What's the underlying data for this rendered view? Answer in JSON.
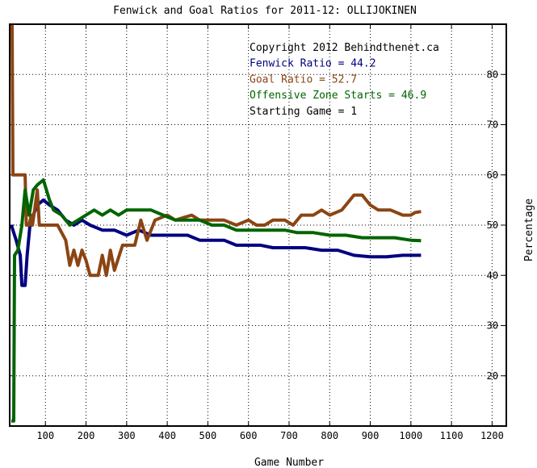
{
  "chart_data": {
    "type": "line",
    "title": "Fenwick and Goal Ratios for 2011-12: OLLIJOKINEN",
    "xlabel": "Game Number",
    "ylabel": "Percentage",
    "xlim": [
      12,
      1235
    ],
    "ylim": [
      10,
      90
    ],
    "x_ticks": [
      100,
      200,
      300,
      400,
      500,
      600,
      700,
      800,
      900,
      1000,
      1100,
      1200
    ],
    "y_ticks": [
      20,
      30,
      40,
      50,
      60,
      70,
      80
    ],
    "y_axis_side": "right",
    "grid": true,
    "annotations": [
      {
        "text": "Copyright 2012 Behindthenet.ca",
        "color": "#000000"
      },
      {
        "text": "Fenwick Ratio = 44.2",
        "color": "#000080"
      },
      {
        "text": "Goal Ratio = 52.7",
        "color": "#8b4513"
      },
      {
        "text": "Offensive Zone Starts = 46.9",
        "color": "#006400"
      },
      {
        "text": "Starting Game = 1",
        "color": "#000000"
      }
    ],
    "series": [
      {
        "name": "Fenwick Ratio",
        "color": "#000080",
        "points": [
          [
            16,
            50
          ],
          [
            28,
            47
          ],
          [
            38,
            44
          ],
          [
            42,
            38
          ],
          [
            50,
            38
          ],
          [
            55,
            44
          ],
          [
            62,
            50
          ],
          [
            70,
            52
          ],
          [
            80,
            54
          ],
          [
            95,
            55
          ],
          [
            110,
            54
          ],
          [
            130,
            53
          ],
          [
            150,
            51
          ],
          [
            170,
            50
          ],
          [
            190,
            51
          ],
          [
            210,
            50
          ],
          [
            240,
            49
          ],
          [
            270,
            49
          ],
          [
            300,
            48
          ],
          [
            330,
            49
          ],
          [
            360,
            48
          ],
          [
            390,
            48
          ],
          [
            420,
            48
          ],
          [
            450,
            48
          ],
          [
            480,
            47
          ],
          [
            510,
            47
          ],
          [
            540,
            47
          ],
          [
            570,
            46
          ],
          [
            600,
            46
          ],
          [
            630,
            46
          ],
          [
            660,
            45.5
          ],
          [
            700,
            45.5
          ],
          [
            740,
            45.5
          ],
          [
            780,
            45
          ],
          [
            820,
            45
          ],
          [
            860,
            44
          ],
          [
            900,
            43.7
          ],
          [
            940,
            43.7
          ],
          [
            980,
            44
          ],
          [
            1010,
            44
          ],
          [
            1025,
            44
          ]
        ]
      },
      {
        "name": "Goal Ratio",
        "color": "#8b4513",
        "points": [
          [
            16,
            91
          ],
          [
            18,
            90
          ],
          [
            20,
            60
          ],
          [
            25,
            60
          ],
          [
            30,
            60
          ],
          [
            50,
            60
          ],
          [
            53,
            50
          ],
          [
            60,
            50
          ],
          [
            65,
            52
          ],
          [
            68,
            50
          ],
          [
            75,
            54
          ],
          [
            80,
            57
          ],
          [
            85,
            50
          ],
          [
            100,
            50
          ],
          [
            130,
            50
          ],
          [
            150,
            47
          ],
          [
            160,
            42
          ],
          [
            170,
            45
          ],
          [
            180,
            42
          ],
          [
            190,
            45
          ],
          [
            200,
            43
          ],
          [
            210,
            40
          ],
          [
            230,
            40
          ],
          [
            240,
            44
          ],
          [
            250,
            40
          ],
          [
            260,
            45
          ],
          [
            270,
            41
          ],
          [
            290,
            46
          ],
          [
            320,
            46
          ],
          [
            335,
            51
          ],
          [
            350,
            47
          ],
          [
            370,
            51
          ],
          [
            400,
            52
          ],
          [
            420,
            51
          ],
          [
            440,
            51.5
          ],
          [
            460,
            52
          ],
          [
            480,
            51
          ],
          [
            510,
            51
          ],
          [
            540,
            51
          ],
          [
            570,
            50
          ],
          [
            600,
            51
          ],
          [
            620,
            50
          ],
          [
            640,
            50
          ],
          [
            660,
            51
          ],
          [
            690,
            51
          ],
          [
            710,
            50
          ],
          [
            730,
            52
          ],
          [
            760,
            52
          ],
          [
            780,
            53
          ],
          [
            800,
            52
          ],
          [
            830,
            53
          ],
          [
            860,
            56
          ],
          [
            880,
            56
          ],
          [
            900,
            54
          ],
          [
            920,
            53
          ],
          [
            950,
            53
          ],
          [
            980,
            52
          ],
          [
            1000,
            52
          ],
          [
            1010,
            52.5
          ],
          [
            1025,
            52.7
          ]
        ]
      },
      {
        "name": "Offensive Zone Starts",
        "color": "#006400",
        "points": [
          [
            16,
            11
          ],
          [
            22,
            11
          ],
          [
            24,
            44
          ],
          [
            32,
            45
          ],
          [
            42,
            50
          ],
          [
            50,
            57
          ],
          [
            60,
            52
          ],
          [
            70,
            57
          ],
          [
            80,
            58
          ],
          [
            95,
            59
          ],
          [
            110,
            55
          ],
          [
            120,
            53
          ],
          [
            140,
            52
          ],
          [
            160,
            50
          ],
          [
            180,
            51
          ],
          [
            200,
            52
          ],
          [
            220,
            53
          ],
          [
            240,
            52
          ],
          [
            260,
            53
          ],
          [
            280,
            52
          ],
          [
            300,
            53
          ],
          [
            330,
            53
          ],
          [
            360,
            53
          ],
          [
            390,
            52
          ],
          [
            420,
            51
          ],
          [
            450,
            51
          ],
          [
            480,
            51
          ],
          [
            510,
            50
          ],
          [
            540,
            50
          ],
          [
            570,
            49
          ],
          [
            600,
            49
          ],
          [
            630,
            49
          ],
          [
            660,
            49
          ],
          [
            690,
            49
          ],
          [
            720,
            48.5
          ],
          [
            760,
            48.5
          ],
          [
            800,
            48
          ],
          [
            840,
            48
          ],
          [
            880,
            47.5
          ],
          [
            920,
            47.5
          ],
          [
            960,
            47.5
          ],
          [
            1000,
            47
          ],
          [
            1025,
            46.9
          ]
        ]
      }
    ]
  }
}
